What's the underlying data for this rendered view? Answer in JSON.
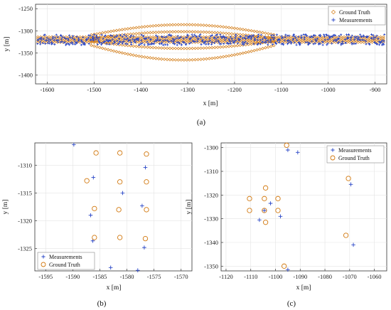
{
  "captions": [
    "(a)",
    "(b)",
    "(c)"
  ],
  "colors": {
    "ground_truth": "#d2780e",
    "measurements": "#2a47c7",
    "axis": "#333333",
    "grid": "#e3e3e3"
  },
  "chart_data": [
    {
      "id": "a",
      "type": "scatter",
      "xlabel": "x [m]",
      "ylabel": "y [m]",
      "xlim": [
        -1625,
        -875
      ],
      "ylim": [
        -1420,
        -1240
      ],
      "xticks": [
        -1600,
        -1500,
        -1400,
        -1300,
        -1200,
        -1100,
        -1000,
        -900
      ],
      "yticks": [
        -1250,
        -1300,
        -1350,
        -1400
      ],
      "grid": true,
      "legend": {
        "position": "top-right",
        "entries": [
          "Ground Truth",
          "Measurements"
        ]
      },
      "series": [
        {
          "name": "Ground Truth",
          "marker": "diamond",
          "band": {
            "x_start": -1620,
            "x_end": -880,
            "y_center": -1320,
            "rows": [
              -1314,
              -1318,
              -1322,
              -1326
            ],
            "bulge": {
              "x_start": -1530,
              "x_end": -1090,
              "max_halfwidth": 40
            }
          }
        },
        {
          "name": "Measurements",
          "marker": "plus",
          "band": {
            "x_start": -1620,
            "x_end": -880,
            "y_center": -1320,
            "spread": 12
          }
        }
      ]
    },
    {
      "id": "b",
      "type": "scatter",
      "xlabel": "x [m]",
      "ylabel": "y [m]",
      "xlim": [
        -1597,
        -1568
      ],
      "ylim": [
        -1329,
        -1306
      ],
      "xticks": [
        -1595,
        -1590,
        -1585,
        -1580,
        -1575,
        -1570
      ],
      "yticks": [
        -1310,
        -1315,
        -1320,
        -1325
      ],
      "grid": true,
      "legend": {
        "position": "bottom-left",
        "entries": [
          "Measurements",
          "Ground Truth"
        ]
      },
      "series": [
        {
          "name": "Measurements",
          "marker": "plus",
          "points": [
            [
              -1589.8,
              -1306.3
            ],
            [
              -1586.2,
              -1312.2
            ],
            [
              -1576.6,
              -1310.4
            ],
            [
              -1580.8,
              -1315.0
            ],
            [
              -1577.2,
              -1317.3
            ],
            [
              -1586.7,
              -1319.0
            ],
            [
              -1586.3,
              -1323.6
            ],
            [
              -1576.8,
              -1324.8
            ],
            [
              -1583.0,
              -1328.4
            ],
            [
              -1578.0,
              -1328.9
            ]
          ]
        },
        {
          "name": "Ground Truth",
          "marker": "circle",
          "points": [
            [
              -1585.7,
              -1307.8
            ],
            [
              -1581.3,
              -1307.8
            ],
            [
              -1576.4,
              -1308.0
            ],
            [
              -1587.4,
              -1312.8
            ],
            [
              -1581.3,
              -1313.0
            ],
            [
              -1576.4,
              -1313.0
            ],
            [
              -1586.0,
              -1317.8
            ],
            [
              -1581.5,
              -1318.0
            ],
            [
              -1576.4,
              -1318.0
            ],
            [
              -1586.0,
              -1323.0
            ],
            [
              -1581.3,
              -1323.0
            ],
            [
              -1576.6,
              -1323.2
            ]
          ]
        }
      ]
    },
    {
      "id": "c",
      "type": "scatter",
      "xlabel": "x [m]",
      "ylabel": "y [m]",
      "xlim": [
        -1122,
        -1055
      ],
      "ylim": [
        -1352,
        -1298
      ],
      "xticks": [
        -1120,
        -1110,
        -1100,
        -1090,
        -1080,
        -1070,
        -1060
      ],
      "yticks": [
        -1300,
        -1310,
        -1320,
        -1330,
        -1340,
        -1350
      ],
      "grid": true,
      "legend": {
        "position": "top-right",
        "entries": [
          "Measurements",
          "Ground Truth"
        ]
      },
      "series": [
        {
          "name": "Measurements",
          "marker": "plus",
          "points": [
            [
              -1095.0,
              -1301.0
            ],
            [
              -1091.0,
              -1302.0
            ],
            [
              -1069.5,
              -1315.5
            ],
            [
              -1104.5,
              -1326.5
            ],
            [
              -1106.5,
              -1330.5
            ],
            [
              -1098.0,
              -1329.0
            ],
            [
              -1068.5,
              -1341.0
            ],
            [
              -1102.0,
              -1323.5
            ],
            [
              -1095.0,
              -1351.5
            ]
          ]
        },
        {
          "name": "Ground Truth",
          "marker": "circle",
          "points": [
            [
              -1095.5,
              -1299.0
            ],
            [
              -1070.5,
              -1313.0
            ],
            [
              -1104.0,
              -1317.0
            ],
            [
              -1110.5,
              -1321.5
            ],
            [
              -1104.5,
              -1321.5
            ],
            [
              -1099.0,
              -1321.5
            ],
            [
              -1110.5,
              -1326.5
            ],
            [
              -1104.5,
              -1326.5
            ],
            [
              -1099.0,
              -1326.5
            ],
            [
              -1104.0,
              -1331.5
            ],
            [
              -1071.5,
              -1337.0
            ],
            [
              -1096.5,
              -1350.0
            ]
          ]
        }
      ]
    }
  ]
}
